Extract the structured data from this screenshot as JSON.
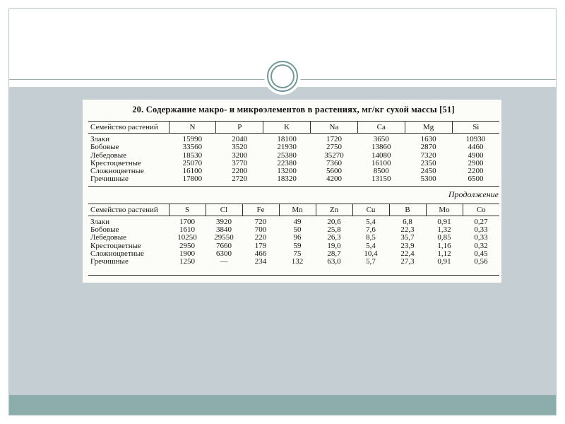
{
  "slide": {
    "table_image": {
      "title": "20. Содержание макро- и микроэлементов в растениях, мг/кг сухой  массы [51]",
      "continuation_label": "Продолжение",
      "table1": {
        "header": [
          "Семейство растений",
          "N",
          "P",
          "K",
          "Na",
          "Ca",
          "Mg",
          "Si"
        ],
        "rows": [
          [
            "Злаки",
            "15990",
            "2040",
            "18100",
            "1720",
            "3650",
            "1630",
            "10930"
          ],
          [
            "Бобовые",
            "33560",
            "3520",
            "21930",
            "2750",
            "13860",
            "2870",
            "4460"
          ],
          [
            "Лебедовые",
            "18530",
            "3200",
            "25380",
            "35270",
            "14080",
            "7320",
            "4900"
          ],
          [
            "Крестоцветные",
            "25070",
            "3770",
            "22380",
            "7360",
            "16100",
            "2350",
            "2900"
          ],
          [
            "Сложноцветные",
            "16100",
            "2200",
            "13200",
            "5600",
            "8500",
            "2450",
            "2200"
          ],
          [
            "Гречишные",
            "17800",
            "2720",
            "18320",
            "4200",
            "13150",
            "5300",
            "6500"
          ]
        ]
      },
      "table2": {
        "header": [
          "Семейство растений",
          "S",
          "Cl",
          "Fe",
          "Mn",
          "Zn",
          "Cu",
          "B",
          "Mo",
          "Co"
        ],
        "rows": [
          [
            "Злаки",
            "1700",
            "3920",
            "720",
            "49",
            "20,6",
            "5,4",
            "6,8",
            "0,91",
            "0,27"
          ],
          [
            "Бобовые",
            "1610",
            "3840",
            "700",
            "50",
            "25,8",
            "7,6",
            "22,3",
            "1,32",
            "0,33"
          ],
          [
            "Лебедовые",
            "10250",
            "29550",
            "220",
            "96",
            "26,3",
            "8,5",
            "35,7",
            "0,85",
            "0,33"
          ],
          [
            "Крестоцветные",
            "2950",
            "7660",
            "179",
            "59",
            "19,0",
            "5,4",
            "23,9",
            "1,16",
            "0,32"
          ],
          [
            "Сложноцветные",
            "1900",
            "6300",
            "466",
            "75",
            "28,7",
            "10,4",
            "22,4",
            "1,12",
            "0,45"
          ],
          [
            "Гречишные",
            "1250",
            "—",
            "234",
            "132",
            "63,0",
            "5,7",
            "27,3",
            "0,91",
            "0,56"
          ]
        ]
      }
    },
    "colors": {
      "panel_background": "#c4ced3",
      "bottom_band": "#8dadac",
      "frame_border": "#b6c7c8",
      "divider_line": "#9cb0b2",
      "ornament_ring": "#73999b",
      "scan_background": "#fcfcf9",
      "scan_text": "#151515"
    }
  }
}
